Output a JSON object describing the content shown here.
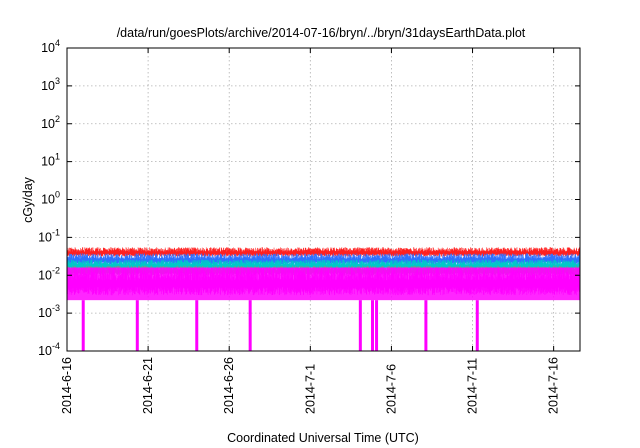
{
  "chart_data": {
    "type": "line",
    "title": "/data/run/goesPlots/archive/2014-07-16/bryn/../bryn/31daysEarthData.plot",
    "xlabel": "Coordinated Universal Time (UTC)",
    "ylabel": "cGy/day",
    "yscale": "log",
    "ylim": [
      0.0001,
      10000
    ],
    "xlim": [
      "2014-06-16",
      "2014-07-17T15:00"
    ],
    "grid": true,
    "y_ticks": [
      {
        "value": 0.0001,
        "base": "10",
        "exp": "-4"
      },
      {
        "value": 0.001,
        "base": "10",
        "exp": "-3"
      },
      {
        "value": 0.01,
        "base": "10",
        "exp": "-2"
      },
      {
        "value": 0.1,
        "base": "10",
        "exp": "-1"
      },
      {
        "value": 1,
        "base": "10",
        "exp": "0"
      },
      {
        "value": 10,
        "base": "10",
        "exp": "1"
      },
      {
        "value": 100,
        "base": "10",
        "exp": "2"
      },
      {
        "value": 1000,
        "base": "10",
        "exp": "3"
      },
      {
        "value": 10000,
        "base": "10",
        "exp": "4"
      }
    ],
    "x_ticks": [
      "2014-6-16",
      "2014-6-21",
      "2014-6-26",
      "2014-7-1",
      "2014-7-6",
      "2014-7-11",
      "2014-7-16"
    ],
    "series": [
      {
        "color": "#ff2020",
        "level_low": 0.028,
        "level_high": 0.055
      },
      {
        "color": "#3070ff",
        "level_low": 0.016,
        "level_high": 0.038
      },
      {
        "color": "#00c8c8",
        "level_low": 0.012,
        "level_high": 0.026
      },
      {
        "color": "#8a8a8a",
        "level_low": 0.009,
        "level_high": 0.018
      },
      {
        "color": "#ff00ff",
        "level_low": 0.0022,
        "level_high": 0.016
      }
    ],
    "magenta_dropouts": [
      "2014-06-17",
      "2014-06-20T08:00",
      "2014-06-24",
      "2014-06-27T07:00",
      "2014-07-04T02:00",
      "2014-07-04T20:00",
      "2014-07-05T02:00",
      "2014-07-08T03:00",
      "2014-07-11T07:00"
    ]
  }
}
